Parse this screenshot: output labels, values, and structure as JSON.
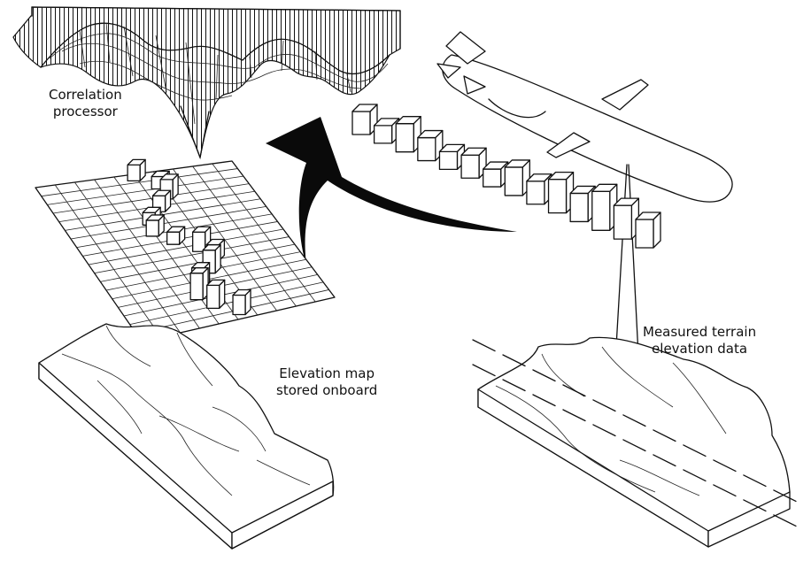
{
  "labels": {
    "correlation_processor": [
      "Correlation",
      "processor"
    ],
    "measured_terrain": [
      "Measured terrain",
      "elevation data"
    ],
    "elevation_map": [
      "Elevation map",
      "stored onboard"
    ]
  },
  "bar_heights": [
    3,
    2,
    4,
    3,
    2,
    3,
    2,
    4,
    3,
    5,
    4,
    6,
    5,
    4
  ]
}
